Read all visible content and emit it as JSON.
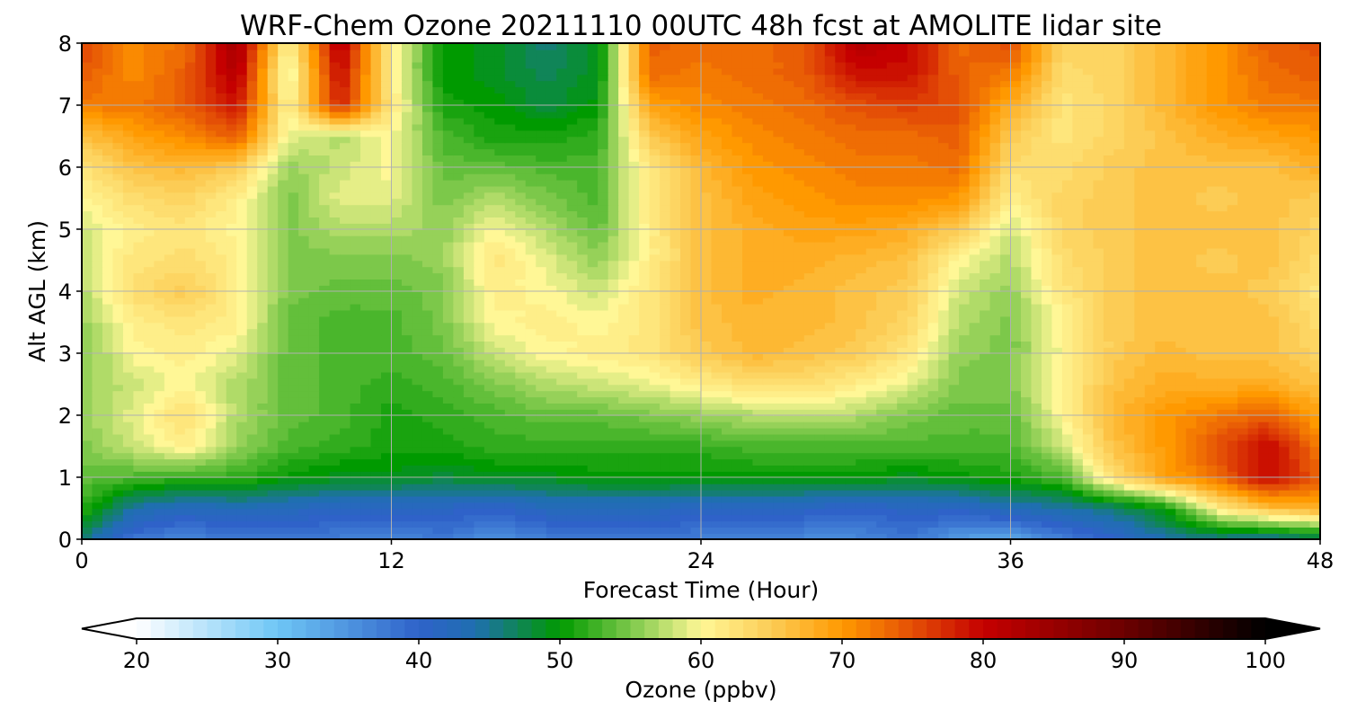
{
  "chart_data": {
    "type": "heatmap",
    "title": "WRF-Chem Ozone  20211110 00UTC 48h fcst at AMOLITE lidar site",
    "xlabel": "Forecast Time (Hour)",
    "ylabel": "Alt AGL (km)",
    "xlim": [
      0,
      48
    ],
    "ylim": [
      0,
      8
    ],
    "x_ticks": [
      0,
      12,
      24,
      36,
      48
    ],
    "y_ticks": [
      0,
      1,
      2,
      3,
      4,
      5,
      6,
      7,
      8
    ],
    "grid": true,
    "colorbar": {
      "label": "Ozone  (ppbv)",
      "min": 20,
      "max": 100,
      "ticks": [
        20,
        30,
        40,
        50,
        60,
        70,
        80,
        90,
        100
      ],
      "extend": "both",
      "orientation": "horizontal",
      "stops": [
        {
          "v": 20,
          "c": "#ffffff"
        },
        {
          "v": 30,
          "c": "#6ec6f5"
        },
        {
          "v": 40,
          "c": "#2f62c9"
        },
        {
          "v": 44,
          "c": "#1f6fb0"
        },
        {
          "v": 50,
          "c": "#009a00"
        },
        {
          "v": 55,
          "c": "#7cc84a"
        },
        {
          "v": 60,
          "c": "#fff796"
        },
        {
          "v": 65,
          "c": "#fccc55"
        },
        {
          "v": 70,
          "c": "#ff9900"
        },
        {
          "v": 75,
          "c": "#e44f06"
        },
        {
          "v": 80,
          "c": "#c50000"
        },
        {
          "v": 90,
          "c": "#6b0000"
        },
        {
          "v": 100,
          "c": "#000000"
        }
      ]
    },
    "x_hours": [
      0,
      2,
      4,
      6,
      8,
      10,
      12,
      14,
      16,
      18,
      20,
      22,
      24,
      26,
      28,
      30,
      32,
      34,
      36,
      38,
      40,
      42,
      44,
      46,
      48
    ],
    "z_km": [
      0,
      0.5,
      1,
      1.5,
      2,
      2.5,
      3,
      3.5,
      4,
      4.5,
      5,
      5.5,
      6,
      6.5,
      7,
      7.5,
      8
    ],
    "values": [
      [
        46,
        38,
        36,
        38,
        38,
        37,
        36,
        38,
        35,
        37,
        38,
        38,
        37,
        37,
        36,
        36,
        38,
        34,
        33,
        37,
        40,
        44,
        45,
        44,
        46
      ],
      [
        52,
        44,
        42,
        43,
        42,
        41,
        41,
        41,
        40,
        42,
        42,
        42,
        41,
        41,
        41,
        40,
        41,
        41,
        43,
        44,
        46,
        50,
        61,
        66,
        68
      ],
      [
        54,
        53,
        52,
        52,
        50,
        49,
        49,
        48,
        49,
        49,
        50,
        50,
        50,
        50,
        50,
        50,
        49,
        50,
        51,
        53,
        63,
        69,
        73,
        80,
        74
      ],
      [
        55,
        58,
        61,
        56,
        53,
        52,
        51,
        51,
        52,
        52,
        52,
        52,
        52,
        53,
        53,
        53,
        53,
        53,
        53,
        58,
        66,
        70,
        75,
        80,
        72
      ],
      [
        56,
        59,
        63,
        57,
        54,
        53,
        51,
        52,
        53,
        54,
        54,
        55,
        56,
        57,
        58,
        57,
        55,
        54,
        54,
        60,
        67,
        70,
        72,
        74,
        69
      ],
      [
        56,
        58,
        60,
        57,
        54,
        53,
        52,
        53,
        55,
        57,
        58,
        59,
        61,
        63,
        63,
        61,
        59,
        55,
        55,
        61,
        66,
        68,
        68,
        68,
        66
      ],
      [
        55,
        60,
        61,
        59,
        54,
        53,
        53,
        54,
        58,
        60,
        61,
        62,
        65,
        67,
        66,
        65,
        62,
        56,
        55,
        60,
        65,
        67,
        66,
        66,
        64
      ],
      [
        56,
        61,
        62,
        61,
        54,
        53,
        53,
        55,
        60,
        61,
        60,
        62,
        66,
        67,
        67,
        66,
        64,
        57,
        55,
        60,
        65,
        66,
        66,
        66,
        63
      ],
      [
        57,
        63,
        65,
        61,
        55,
        54,
        54,
        55,
        61,
        60,
        58,
        62,
        66,
        68,
        67,
        66,
        65,
        58,
        56,
        62,
        65,
        66,
        66,
        65,
        62
      ],
      [
        58,
        62,
        63,
        61,
        55,
        55,
        55,
        56,
        62,
        59,
        56,
        61,
        66,
        68,
        68,
        67,
        66,
        60,
        57,
        63,
        65,
        66,
        65,
        66,
        63
      ],
      [
        58,
        61,
        62,
        60,
        55,
        57,
        57,
        56,
        60,
        57,
        54,
        61,
        66,
        68,
        69,
        69,
        68,
        65,
        58,
        64,
        65,
        66,
        66,
        66,
        64
      ],
      [
        60,
        63,
        64,
        61,
        55,
        59,
        59,
        55,
        57,
        55,
        53,
        62,
        66,
        69,
        70,
        71,
        71,
        70,
        61,
        64,
        65,
        66,
        65,
        66,
        65
      ],
      [
        62,
        66,
        67,
        65,
        56,
        58,
        60,
        54,
        54,
        53,
        53,
        62,
        67,
        70,
        71,
        72,
        72,
        73,
        63,
        63,
        65,
        66,
        66,
        66,
        68
      ],
      [
        66,
        69,
        71,
        74,
        59,
        57,
        60,
        53,
        51,
        51,
        52,
        65,
        69,
        71,
        72,
        73,
        73,
        74,
        65,
        62,
        64,
        66,
        68,
        69,
        70
      ],
      [
        72,
        72,
        74,
        79,
        60,
        78,
        62,
        51,
        50,
        48,
        50,
        69,
        71,
        72,
        73,
        75,
        76,
        75,
        68,
        62,
        64,
        67,
        70,
        72,
        72
      ],
      [
        74,
        71,
        74,
        82,
        58,
        80,
        61,
        50,
        49,
        47,
        49,
        73,
        72,
        73,
        74,
        79,
        79,
        74,
        72,
        63,
        64,
        67,
        70,
        73,
        74
      ],
      [
        76,
        71,
        73,
        84,
        60,
        82,
        61,
        50,
        49,
        46,
        49,
        74,
        73,
        73,
        74,
        82,
        80,
        73,
        75,
        64,
        64,
        67,
        70,
        74,
        75
      ]
    ]
  }
}
